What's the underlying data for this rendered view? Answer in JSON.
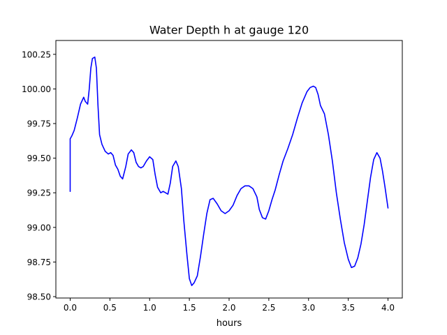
{
  "chart_data": {
    "type": "line",
    "title": "Water Depth h at gauge 120",
    "xlabel": "hours",
    "ylabel": "",
    "xlim": [
      -0.18,
      4.18
    ],
    "ylim": [
      98.49,
      100.35
    ],
    "xticks": [
      0.0,
      0.5,
      1.0,
      1.5,
      2.0,
      2.5,
      3.0,
      3.5,
      4.0
    ],
    "xtick_labels": [
      "0.0",
      "0.5",
      "1.0",
      "1.5",
      "2.0",
      "2.5",
      "3.0",
      "3.5",
      "4.0"
    ],
    "yticks": [
      98.5,
      98.75,
      99.0,
      99.25,
      99.5,
      99.75,
      100.0,
      100.25
    ],
    "ytick_labels": [
      "98.50",
      "98.75",
      "99.00",
      "99.25",
      "99.50",
      "99.75",
      "100.00",
      "100.25"
    ],
    "grid": false,
    "series": [
      {
        "color": "#0000ff",
        "x": [
          0.0,
          0.0,
          0.02,
          0.05,
          0.09,
          0.13,
          0.17,
          0.19,
          0.22,
          0.24,
          0.26,
          0.28,
          0.31,
          0.33,
          0.35,
          0.37,
          0.4,
          0.44,
          0.48,
          0.51,
          0.54,
          0.57,
          0.6,
          0.63,
          0.66,
          0.7,
          0.73,
          0.77,
          0.8,
          0.83,
          0.86,
          0.89,
          0.92,
          0.96,
          1.0,
          1.04,
          1.07,
          1.1,
          1.14,
          1.17,
          1.2,
          1.23,
          1.26,
          1.29,
          1.33,
          1.36,
          1.4,
          1.43,
          1.47,
          1.5,
          1.53,
          1.56,
          1.6,
          1.64,
          1.68,
          1.72,
          1.76,
          1.8,
          1.85,
          1.9,
          1.95,
          2.0,
          2.05,
          2.1,
          2.15,
          2.2,
          2.25,
          2.3,
          2.35,
          2.38,
          2.42,
          2.46,
          2.5,
          2.54,
          2.58,
          2.63,
          2.68,
          2.74,
          2.8,
          2.86,
          2.92,
          2.98,
          3.02,
          3.06,
          3.09,
          3.12,
          3.15,
          3.2,
          3.25,
          3.3,
          3.35,
          3.4,
          3.45,
          3.5,
          3.54,
          3.58,
          3.62,
          3.66,
          3.7,
          3.74,
          3.78,
          3.82,
          3.86,
          3.9,
          3.93,
          3.96,
          4.0
        ],
        "y": [
          99.26,
          99.64,
          99.66,
          99.7,
          99.79,
          99.89,
          99.94,
          99.91,
          99.89,
          100.0,
          100.15,
          100.22,
          100.23,
          100.15,
          99.88,
          99.67,
          99.6,
          99.55,
          99.53,
          99.54,
          99.52,
          99.45,
          99.42,
          99.37,
          99.35,
          99.44,
          99.53,
          99.56,
          99.54,
          99.47,
          99.44,
          99.43,
          99.44,
          99.48,
          99.51,
          99.49,
          99.38,
          99.29,
          99.25,
          99.26,
          99.25,
          99.24,
          99.32,
          99.44,
          99.48,
          99.44,
          99.28,
          99.05,
          98.8,
          98.63,
          98.58,
          98.6,
          98.65,
          98.79,
          98.95,
          99.1,
          99.2,
          99.21,
          99.17,
          99.12,
          99.1,
          99.12,
          99.16,
          99.23,
          99.28,
          99.3,
          99.3,
          99.28,
          99.22,
          99.13,
          99.07,
          99.06,
          99.12,
          99.2,
          99.27,
          99.38,
          99.48,
          99.57,
          99.67,
          99.79,
          99.9,
          99.98,
          100.01,
          100.02,
          100.01,
          99.96,
          99.88,
          99.82,
          99.67,
          99.48,
          99.25,
          99.06,
          98.89,
          98.77,
          98.71,
          98.72,
          98.78,
          98.88,
          99.02,
          99.19,
          99.36,
          99.49,
          99.54,
          99.5,
          99.41,
          99.3,
          99.14
        ]
      }
    ]
  }
}
